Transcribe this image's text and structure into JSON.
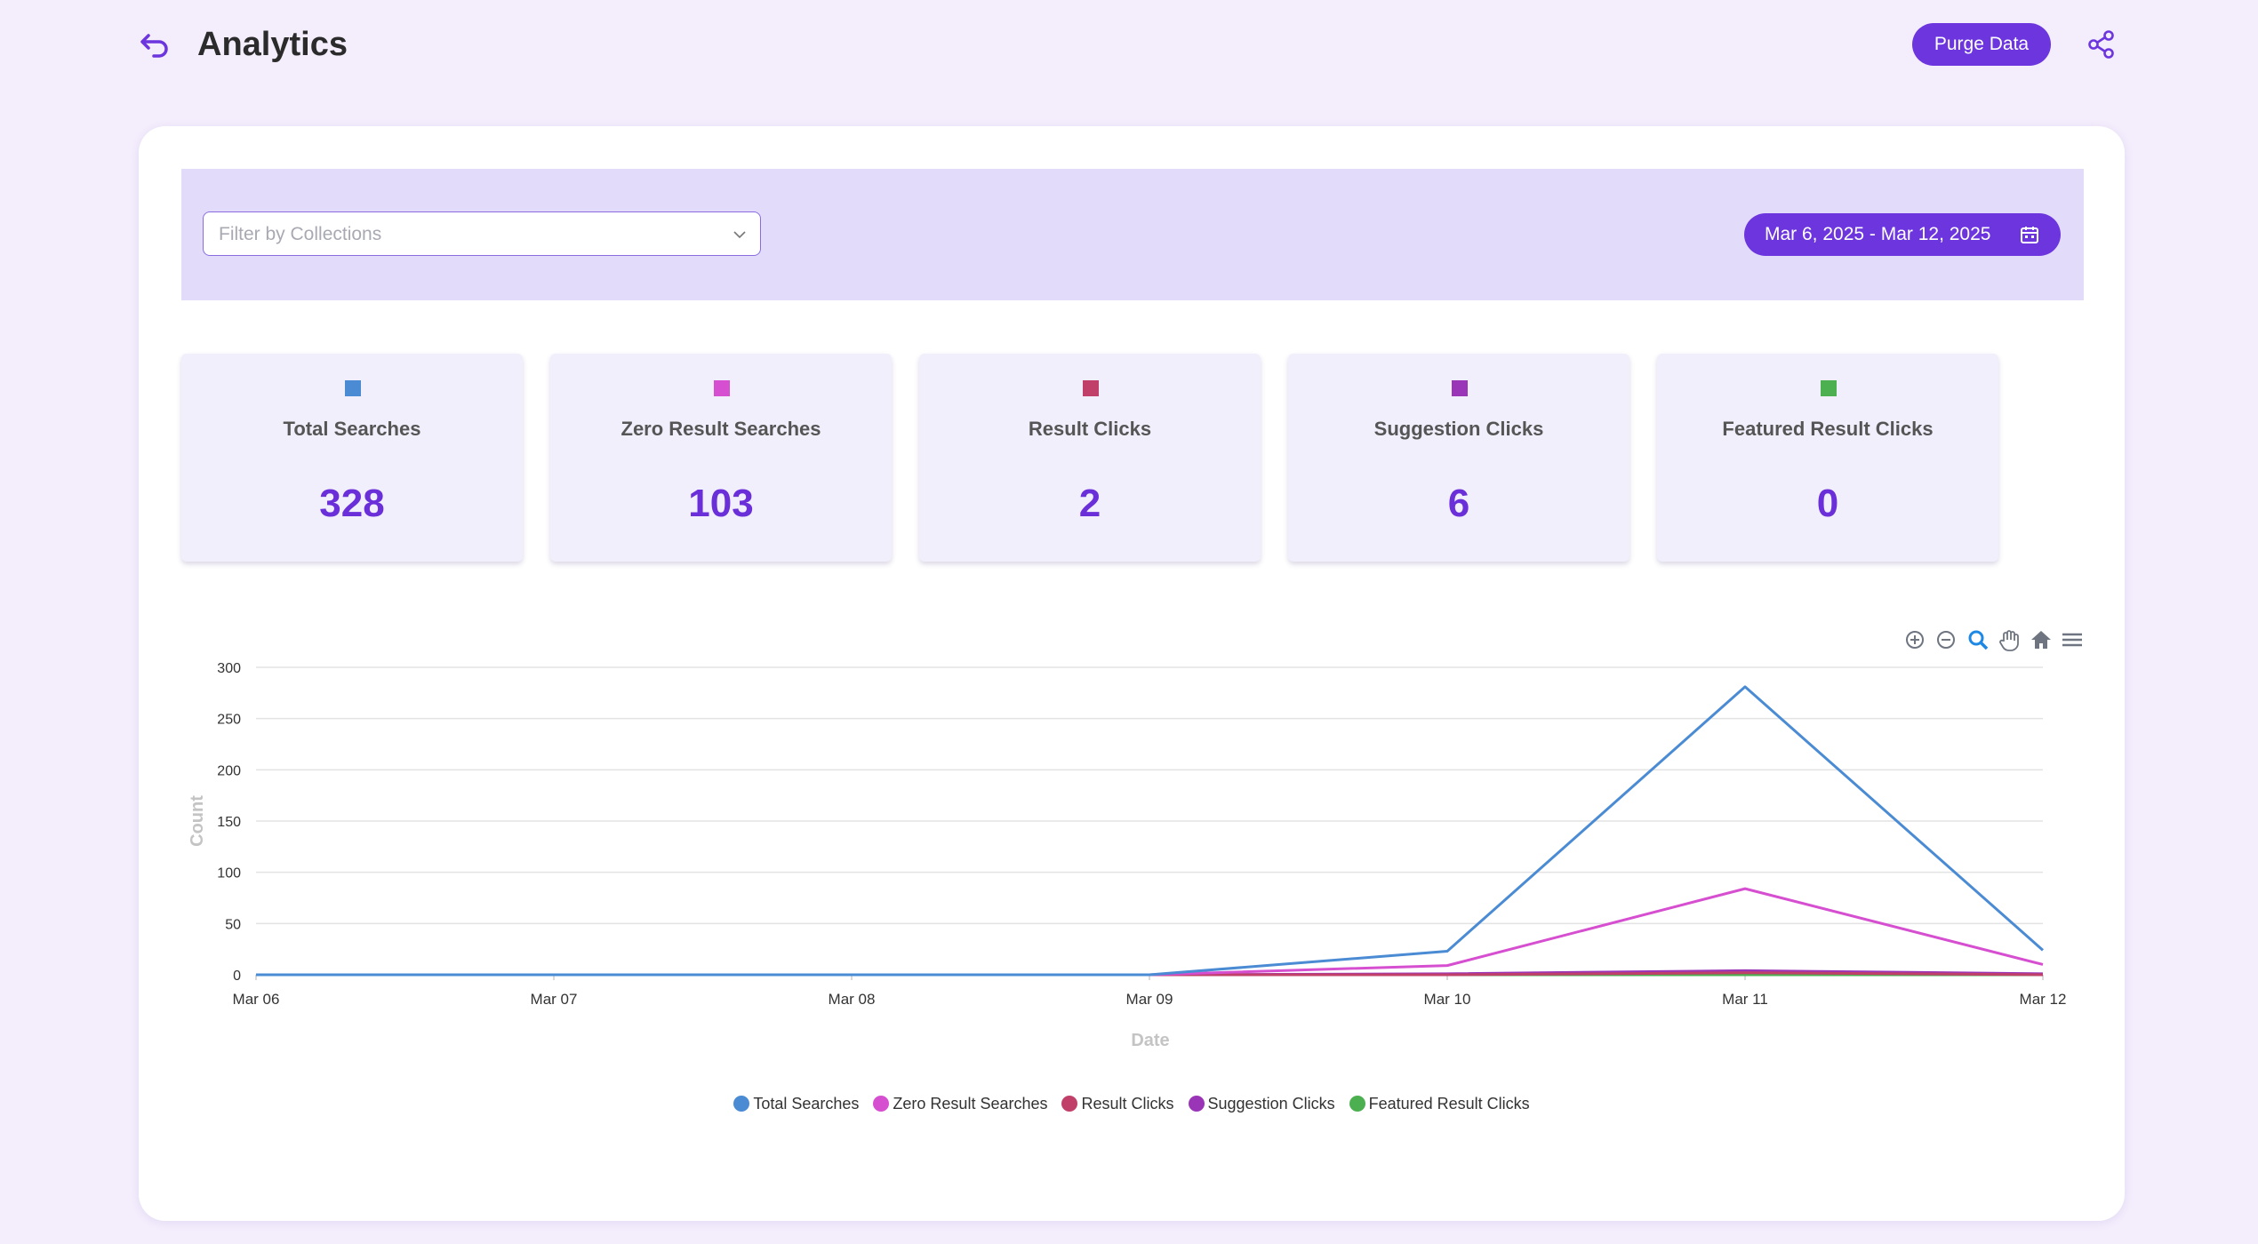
{
  "header": {
    "title": "Analytics",
    "purge_label": "Purge Data"
  },
  "filters": {
    "collection_placeholder": "Filter by Collections",
    "date_range": "Mar 6, 2025 - Mar 12, 2025"
  },
  "stats": [
    {
      "label": "Total Searches",
      "value": "328",
      "color": "#4a8bd4"
    },
    {
      "label": "Zero Result Searches",
      "value": "103",
      "color": "#d64fd0"
    },
    {
      "label": "Result Clicks",
      "value": "2",
      "color": "#c0406a"
    },
    {
      "label": "Suggestion Clicks",
      "value": "6",
      "color": "#9b35b8"
    },
    {
      "label": "Featured Result Clicks",
      "value": "0",
      "color": "#4caf50"
    }
  ],
  "chart_data": {
    "type": "line",
    "x": [
      "Mar 06",
      "Mar 07",
      "Mar 08",
      "Mar 09",
      "Mar 10",
      "Mar 11",
      "Mar 12"
    ],
    "xlabel": "Date",
    "ylabel": "Count",
    "ylim": [
      0,
      300
    ],
    "yticks": [
      0,
      50,
      100,
      150,
      200,
      250,
      300
    ],
    "grid": true,
    "legend": "bottom",
    "series": [
      {
        "name": "Total Searches",
        "color": "#4a8bd4",
        "values": [
          0,
          0,
          0,
          0,
          23,
          281,
          24
        ]
      },
      {
        "name": "Zero Result Searches",
        "color": "#d64fd0",
        "values": [
          0,
          0,
          0,
          0,
          9,
          84,
          10
        ]
      },
      {
        "name": "Result Clicks",
        "color": "#c0406a",
        "values": [
          0,
          0,
          0,
          0,
          0,
          2,
          0
        ]
      },
      {
        "name": "Suggestion Clicks",
        "color": "#9b35b8",
        "values": [
          0,
          0,
          0,
          0,
          1,
          4,
          1
        ]
      },
      {
        "name": "Featured Result Clicks",
        "color": "#4caf50",
        "values": [
          0,
          0,
          0,
          0,
          0,
          0,
          0
        ]
      }
    ]
  },
  "toolbar_icons": [
    "zoom-in-icon",
    "zoom-out-icon",
    "selection-zoom-icon",
    "pan-hand-icon",
    "reset-home-icon",
    "menu-icon"
  ]
}
